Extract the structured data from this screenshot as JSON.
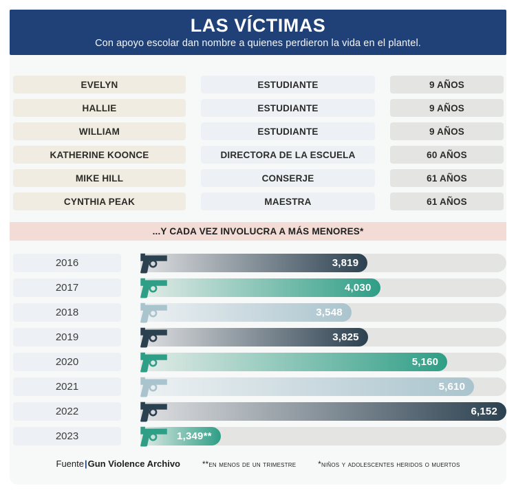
{
  "header": {
    "title": "LAS VÍCTIMAS",
    "subtitle": "Con apoyo escolar dan nombre a quienes perdieron la vida en el plantel."
  },
  "victims": {
    "rows": [
      {
        "name": "EVELYN",
        "role": "ESTUDIANTE",
        "age": "9 AÑOS"
      },
      {
        "name": "HALLIE",
        "role": "ESTUDIANTE",
        "age": "9 AÑOS"
      },
      {
        "name": "WILLIAM",
        "role": "ESTUDIANTE",
        "age": "9 AÑOS"
      },
      {
        "name": "KATHERINE KOONCE",
        "role": "DIRECTORA DE LA ESCUELA",
        "age": "60 AÑOS"
      },
      {
        "name": "MIKE HILL",
        "role": "CONSERJE",
        "age": "61 AÑOS"
      },
      {
        "name": "CYNTHIA PEAK",
        "role": "MAESTRA",
        "age": "61 AÑOS"
      }
    ]
  },
  "chart_data": {
    "type": "bar",
    "orientation": "horizontal",
    "title": "...Y CADA VEZ INVOLUCRA A MÁS MENORES*",
    "categories": [
      "2016",
      "2017",
      "2018",
      "2019",
      "2020",
      "2021",
      "2022",
      "2023"
    ],
    "values": [
      3819,
      4030,
      3548,
      3825,
      5160,
      5610,
      6152,
      1349
    ],
    "value_labels": [
      "3,819",
      "4,030",
      "3,548",
      "3,825",
      "5,160",
      "5,610",
      "6,152",
      "1,349**"
    ],
    "bar_styles": [
      "dark",
      "teal",
      "steel",
      "dark",
      "teal",
      "steel",
      "dark",
      "teal"
    ],
    "xlim": [
      0,
      6152
    ],
    "legend": "none",
    "grid": "off",
    "icon": "pistol-icon"
  },
  "footer": {
    "source_label": "Fuente",
    "source_pipe": "|",
    "source_name": "Gun Violence Archivo",
    "note_trimester": "**En menos de un trimestre",
    "note_children": "*Niños y adolescentes heridos o muertos"
  },
  "colors": {
    "banner_blue": "#1f4178",
    "band_pink": "#f2dcd5",
    "name_cell_beige": "#f1ece1",
    "role_cell_blue": "#edf1f6",
    "age_cell_gray": "#e4e4e3",
    "year_cell": "#edf0f5",
    "track_gray": "#e4e4e3",
    "bar_dark": "#2c4150",
    "bar_teal": "#2f9e86",
    "bar_steel": "#aac4cd"
  }
}
